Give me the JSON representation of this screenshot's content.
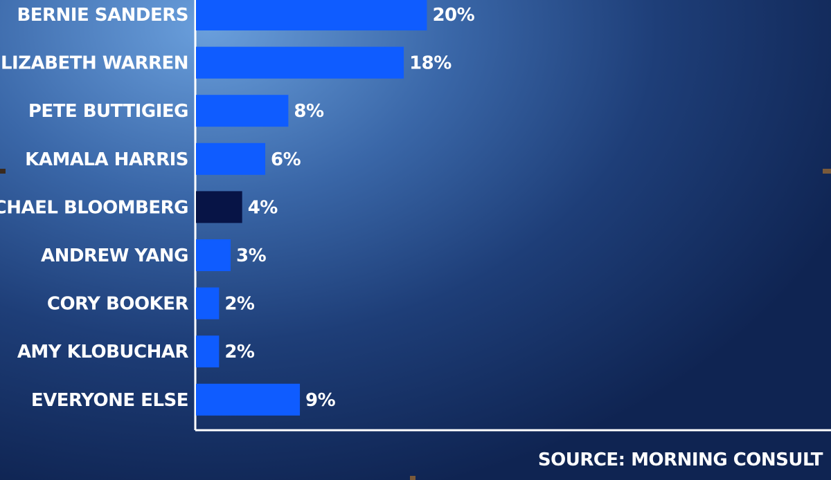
{
  "chart_data": {
    "type": "bar",
    "orientation": "horizontal",
    "categories": [
      "BERNIE SANDERS",
      "ELIZABETH WARREN",
      "PETE BUTTIGIEG",
      "KAMALA HARRIS",
      "MICHAEL BLOOMBERG",
      "ANDREW YANG",
      "CORY BOOKER",
      "AMY KLOBUCHAR",
      "EVERYONE ELSE"
    ],
    "values": [
      20,
      18,
      8,
      6,
      4,
      3,
      2,
      2,
      9
    ],
    "value_labels": [
      "20%",
      "18%",
      "8%",
      "6%",
      "4%",
      "3%",
      "2%",
      "2%",
      "9%"
    ],
    "highlight_category": "MICHAEL BLOOMBERG",
    "title": "",
    "xlabel": "",
    "ylabel": "",
    "xlim": [
      0,
      55
    ],
    "grid": false,
    "legend": "none"
  },
  "source_text": "SOURCE: MORNING CONSULT",
  "colors": {
    "bar": "#0f5cff",
    "bar_highlight": "#071446",
    "axis": "#ffffff",
    "text": "#ffffff"
  }
}
